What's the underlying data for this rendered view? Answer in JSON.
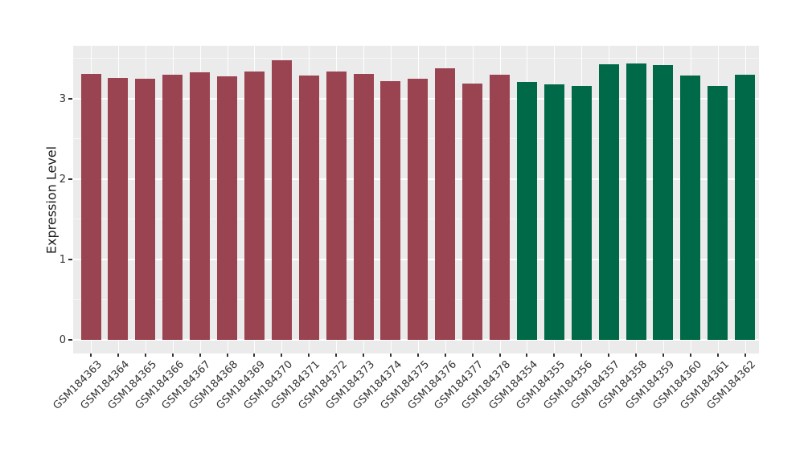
{
  "figure": {
    "background_color": "#ffffff",
    "panel_background_color": "#ebebeb",
    "gridline_color": "#ffffff",
    "tick_color": "#333333",
    "axis_text_color": "#333333"
  },
  "y_axis": {
    "title": "Expression Level",
    "tick_labels": [
      "0",
      "1",
      "2",
      "3"
    ],
    "tick_values": [
      0,
      1,
      2,
      3
    ],
    "minor_tick_values": [
      0.5,
      1.5,
      2.5,
      3.5
    ]
  },
  "chart_data": {
    "type": "bar",
    "title": "",
    "xlabel": "",
    "ylabel": "Expression Level",
    "ylim": [
      0,
      3.66
    ],
    "grid": "on",
    "legend": "none",
    "categories": [
      "GSM184363",
      "GSM184364",
      "GSM184365",
      "GSM184366",
      "GSM184367",
      "GSM184368",
      "GSM184369",
      "GSM184370",
      "GSM184371",
      "GSM184372",
      "GSM184373",
      "GSM184374",
      "GSM184375",
      "GSM184376",
      "GSM184377",
      "GSM184378",
      "GSM184354",
      "GSM184355",
      "GSM184356",
      "GSM184357",
      "GSM184358",
      "GSM184359",
      "GSM184360",
      "GSM184361",
      "GSM184362"
    ],
    "values": [
      3.31,
      3.26,
      3.25,
      3.3,
      3.33,
      3.28,
      3.34,
      3.48,
      3.29,
      3.34,
      3.31,
      3.22,
      3.25,
      3.38,
      3.19,
      3.3,
      3.21,
      3.18,
      3.16,
      3.43,
      3.44,
      3.42,
      3.29,
      3.16,
      3.3
    ],
    "groups": [
      "red",
      "red",
      "red",
      "red",
      "red",
      "red",
      "red",
      "red",
      "red",
      "red",
      "red",
      "red",
      "red",
      "red",
      "red",
      "red",
      "green",
      "green",
      "green",
      "green",
      "green",
      "green",
      "green",
      "green",
      "green"
    ],
    "group_colors": {
      "red": "#9b4451",
      "green": "#006948"
    }
  }
}
